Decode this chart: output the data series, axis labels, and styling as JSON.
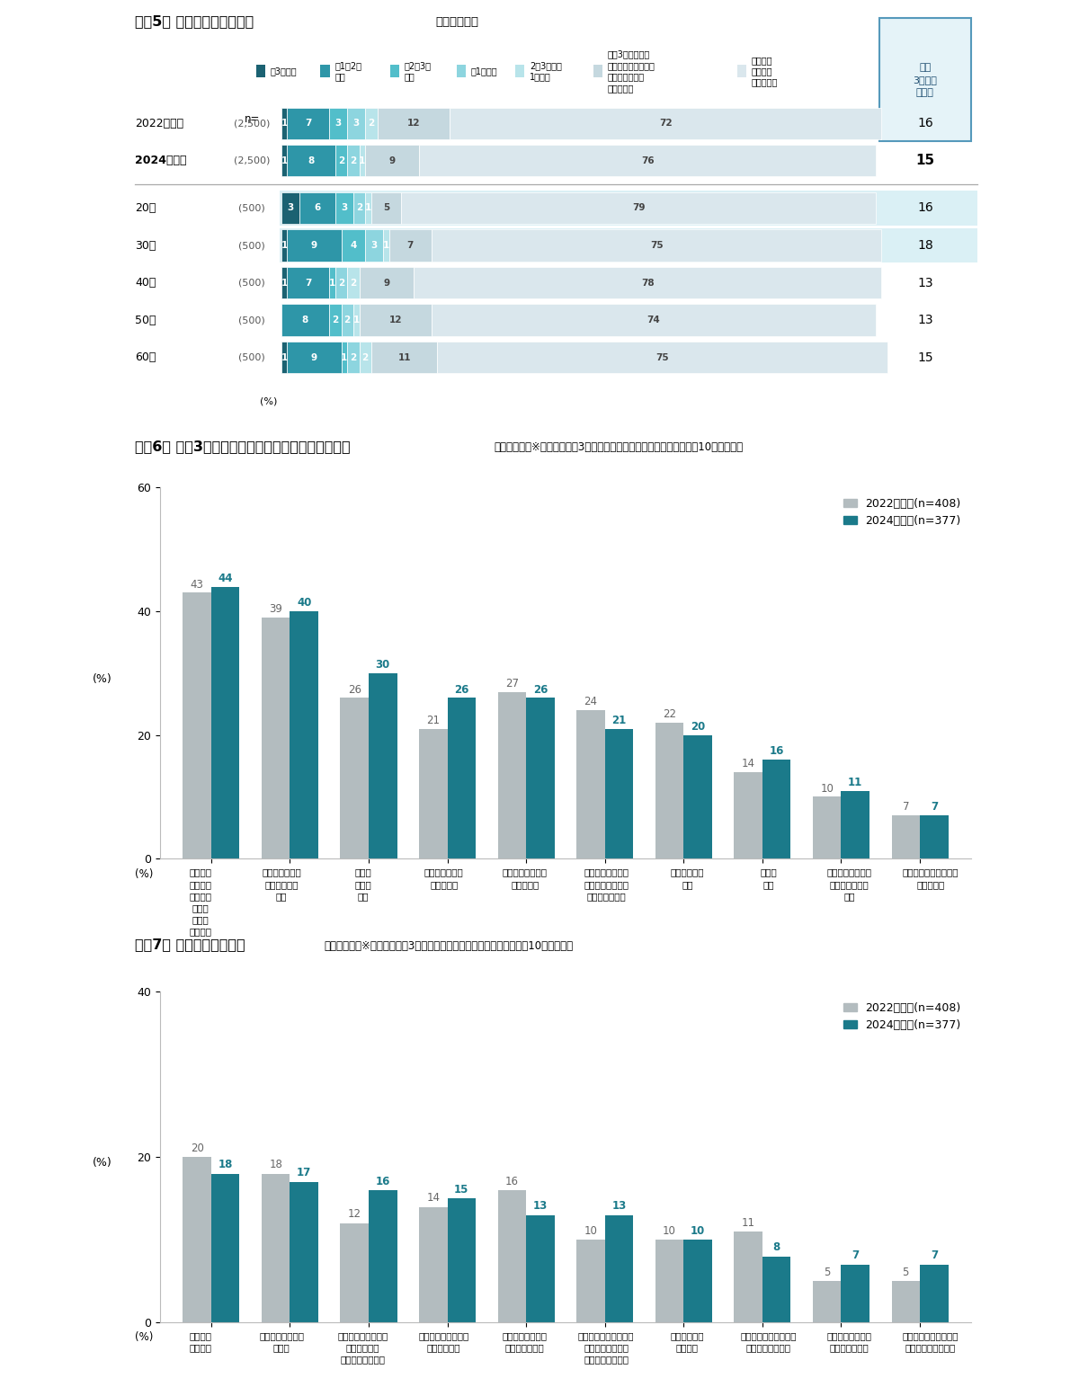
{
  "fig5": {
    "title_bold": "＜図5＞ 食材宅配の利用頻度",
    "title_normal": "（単一回答）",
    "rows": [
      {
        "label": "2022年全体",
        "n": "(2,500)",
        "bold": false,
        "values": [
          1,
          7,
          3,
          3,
          2,
          12,
          72
        ],
        "rate": 16,
        "highlight": false
      },
      {
        "label": "2024年全体",
        "n": "(2,500)",
        "bold": true,
        "values": [
          1,
          8,
          2,
          2,
          1,
          9,
          76
        ],
        "rate": 15,
        "highlight": false
      },
      {
        "label": "20代",
        "n": "(500)",
        "bold": false,
        "values": [
          3,
          6,
          3,
          2,
          1,
          5,
          79
        ],
        "rate": 16,
        "highlight": true
      },
      {
        "label": "30代",
        "n": "(500)",
        "bold": false,
        "values": [
          1,
          9,
          4,
          3,
          1,
          7,
          75
        ],
        "rate": 18,
        "highlight": true
      },
      {
        "label": "40代",
        "n": "(500)",
        "bold": false,
        "values": [
          1,
          7,
          1,
          2,
          2,
          9,
          78
        ],
        "rate": 13,
        "highlight": false
      },
      {
        "label": "50代",
        "n": "(500)",
        "bold": false,
        "values": [
          0,
          8,
          2,
          2,
          1,
          12,
          74
        ],
        "rate": 13,
        "highlight": false
      },
      {
        "label": "60代",
        "n": "(500)",
        "bold": false,
        "values": [
          1,
          9,
          1,
          2,
          2,
          11,
          75
        ],
        "rate": 15,
        "highlight": false
      }
    ],
    "bar_colors": [
      "#1b6272",
      "#2e96a8",
      "#52beca",
      "#8dd5df",
      "#b8e4ea",
      "#c5d8df",
      "#dae7ed"
    ],
    "legend_labels": [
      "週3日以上",
      "週1～2日\n程度",
      "月2～3日\n程度",
      "月1日程度",
      "2～3ヶ月に\n1日程度",
      "直近3か月以内に\n利用していないが、\n過去に利用した\nことはある",
      "今までに\n利用した\nことはない"
    ],
    "rate_box_label": "直近\n3か月間\n利用率"
  },
  "fig6": {
    "title_bold": "＜図6＞ 直近3か月間に食材宅配を利用している理由",
    "title_normal": "（複数回答）※ベース：直近3か月以内に食材宅配を利用した人／上位10項目を抜粋",
    "categories": [
      "届かたい\nものを・\n重さばい\nものの\nを届け\nてくれる",
      "お買い物が面倒\n・時間がない\nとき",
      "安全・\n安心で\nある",
      "時間を気にせず\n購入できる",
      "お店では買えない\n食品である",
      "天候が悪い時や・\n体調不良の時でも\n買い物ができる",
      "送料が安い・\n無料",
      "新鮮で\nある",
      "次回注文すれば、\n以降は定期的に\n届く",
      "割引などキャンペーン\nがあるとき"
    ],
    "values_2022": [
      43,
      39,
      26,
      21,
      27,
      24,
      22,
      14,
      10,
      7
    ],
    "values_2024": [
      44,
      40,
      30,
      26,
      26,
      21,
      20,
      16,
      11,
      7
    ],
    "color_2022": "#b3bcbf",
    "color_2024": "#1b7a8a",
    "ylim": 60,
    "yticks": [
      0,
      20,
      40,
      60
    ],
    "legend_2022": "2022年全体(n=408)",
    "legend_2024": "2024年全体(n=377)"
  },
  "fig7": {
    "title_bold": "＜図7＞ 食材宅配の不満点",
    "title_normal": "（複数回答）※ベース：直近3か月以内に食材宅配を注文した人／上位10項目を抜粋",
    "categories": [
      "少量を頼\nみにくい",
      "配達料金がかかる\n／高い",
      "届くまでの温度管理\n（冷凍食品や\nチルド食品など）",
      "注文から届くまでに\n時間がかかる",
      "自分の目で食材・\n商品を選べない",
      "衝撃対策管理の揺れ・\nやわらかい食材が\nつぶれる／割れる",
      "配達エリアが\n限られる",
      "配達時間帯に在宅して\nいることが難しい",
      "賞味・消費期限が\n短いものが多い",
      "注文したものが正しく\n届かない（誤配達）"
    ],
    "values_2022": [
      20,
      18,
      12,
      14,
      16,
      10,
      10,
      11,
      5,
      5
    ],
    "values_2024": [
      18,
      17,
      16,
      15,
      13,
      13,
      10,
      8,
      7,
      7
    ],
    "color_2022": "#b3bcbf",
    "color_2024": "#1b7a8a",
    "ylim": 40,
    "yticks": [
      0,
      20,
      40
    ],
    "legend_2022": "2022年全体(n=408)",
    "legend_2024": "2024年全体(n=377)"
  },
  "bg": "#ffffff"
}
